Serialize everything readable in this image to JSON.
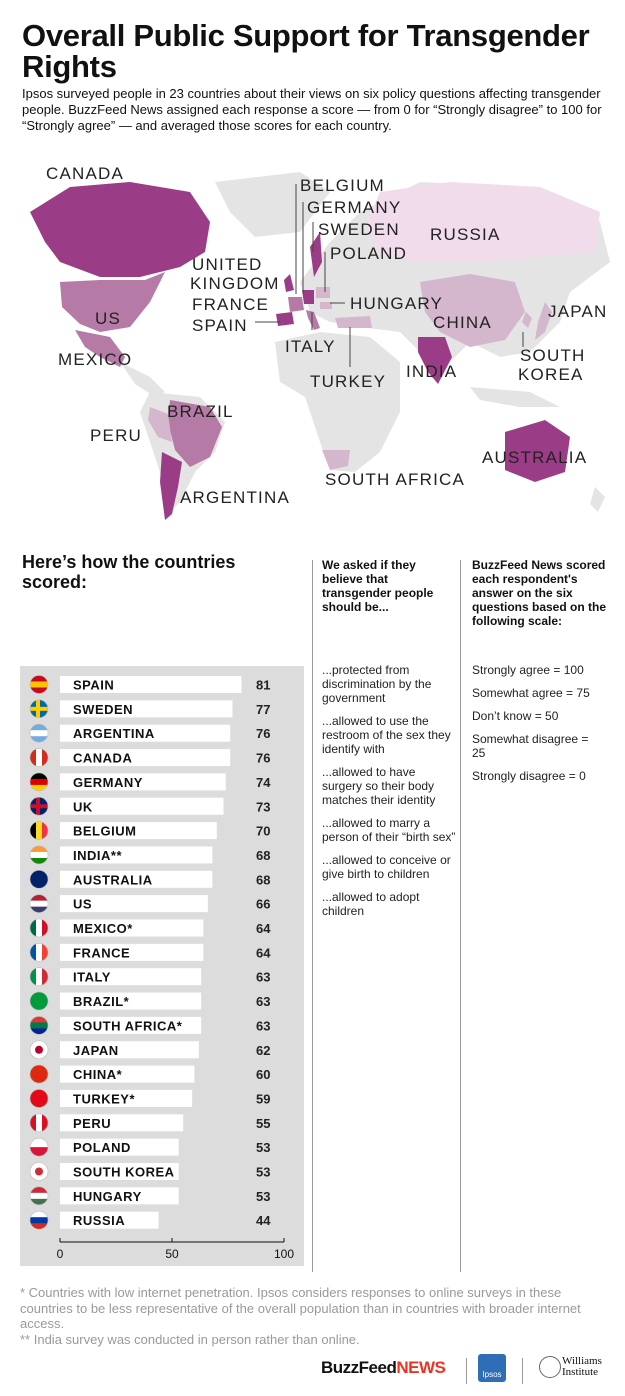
{
  "title": "Overall Public Support for Transgender Rights",
  "subtitle": "Ipsos surveyed people in 23 countries about their views on six policy questions affecting transgender people. BuzzFeed News assigned each response a score — from 0 for “Strongly disagree” to 100 for “Strongly agree” — and averaged those scores for each country.",
  "map": {
    "labels": [
      "CANADA",
      "BELGIUM",
      "GERMANY",
      "SWEDEN",
      "POLAND",
      "RUSSIA",
      "UNITED",
      "KINGDOM",
      "FRANCE",
      "SPAIN",
      "HUNGARY",
      "JAPAN",
      "US",
      "CHINA",
      "MEXICO",
      "ITALY",
      "SOUTH",
      "KOREA",
      "INDIA",
      "TURKEY",
      "BRAZIL",
      "PERU",
      "AUSTRALIA",
      "SOUTH AFRICA",
      "ARGENTINA"
    ],
    "colors": {
      "strong": "#9b3d86",
      "mid": "#b57aa6",
      "light": "#d4b6cd",
      "none": "#e4e4e4"
    }
  },
  "section_heading": "Here’s how the countries scored:",
  "questions": {
    "heading": "We asked if they believe that transgender people should be...",
    "items": [
      "...protected from discrimination by the government",
      "...allowed to use the restroom of the sex they identify with",
      "...allowed to have surgery so their body matches their identity",
      "...allowed to marry a person of their “birth sex”",
      "...allowed to conceive or give birth to children",
      "...allowed to adopt children"
    ]
  },
  "scale": {
    "heading": "BuzzFeed News scored each respondent's answer on the six questions based on the following scale:",
    "items": [
      "Strongly agree = 100",
      "Somewhat agree = 75",
      "Don’t know = 50",
      "Somewhat disagree = 25",
      "Strongly disagree = 0"
    ]
  },
  "chart_data": {
    "type": "bar",
    "orientation": "horizontal",
    "categories": [
      "SPAIN",
      "SWEDEN",
      "ARGENTINA",
      "CANADA",
      "GERMANY",
      "UK",
      "BELGIUM",
      "INDIA**",
      "AUSTRALIA",
      "US",
      "MEXICO*",
      "FRANCE",
      "ITALY",
      "BRAZIL*",
      "SOUTH AFRICA*",
      "JAPAN",
      "CHINA*",
      "TURKEY*",
      "PERU",
      "POLAND",
      "SOUTH KOREA",
      "HUNGARY",
      "RUSSIA"
    ],
    "values": [
      81,
      77,
      76,
      76,
      74,
      73,
      70,
      68,
      68,
      66,
      64,
      64,
      63,
      63,
      63,
      62,
      60,
      59,
      55,
      53,
      53,
      53,
      44
    ],
    "flags": [
      "spain-flag-icon",
      "sweden-flag-icon",
      "argentina-flag-icon",
      "canada-flag-icon",
      "germany-flag-icon",
      "uk-flag-icon",
      "belgium-flag-icon",
      "india-flag-icon",
      "australia-flag-icon",
      "us-flag-icon",
      "mexico-flag-icon",
      "france-flag-icon",
      "italy-flag-icon",
      "brazil-flag-icon",
      "south-africa-flag-icon",
      "japan-flag-icon",
      "china-flag-icon",
      "turkey-flag-icon",
      "peru-flag-icon",
      "poland-flag-icon",
      "south-korea-flag-icon",
      "hungary-flag-icon",
      "russia-flag-icon"
    ],
    "xticks": [
      0,
      50,
      100
    ],
    "xlim": [
      0,
      100
    ],
    "grid": false,
    "bar_color": "#ffffff",
    "background": "#dcdcdc"
  },
  "footnotes": [
    "* Countries with low internet penetration. Ipsos considers responses to online surveys in these countries to be less representative of the overall population than in countries with broader internet access.",
    "** India survey was conducted in person rather than online."
  ],
  "logos": {
    "buzzfeed": "BuzzFeed",
    "news": "NEWS",
    "ipsos": "Ipsos",
    "williams_line1": "Williams",
    "williams_line2": "Institute"
  }
}
